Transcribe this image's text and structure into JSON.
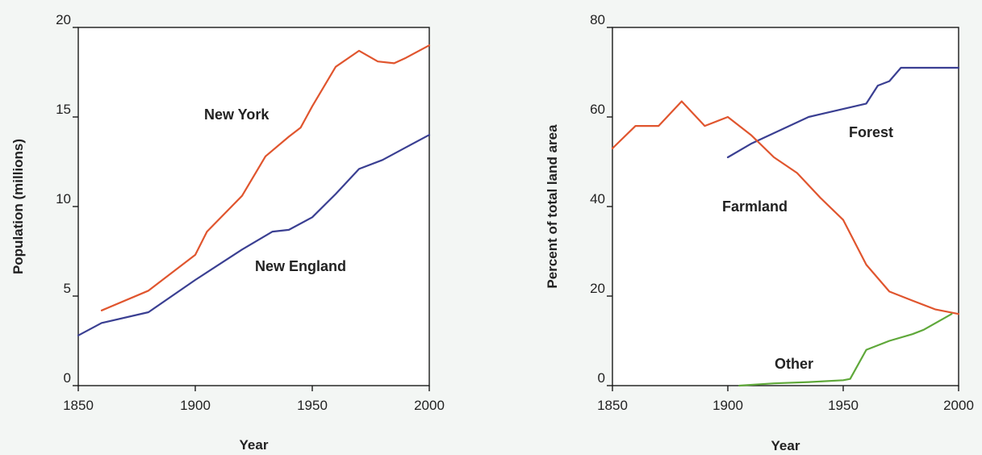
{
  "chart_data": [
    {
      "type": "line",
      "title": "",
      "xlabel": "Year",
      "ylabel": "Population (millions)",
      "xlim": [
        1850,
        2000
      ],
      "ylim": [
        0,
        20
      ],
      "xticks": [
        "1850",
        "1900",
        "1950",
        "2000"
      ],
      "yticks": [
        "0",
        "5",
        "10",
        "15",
        "20"
      ],
      "grid": false,
      "series": [
        {
          "name": "New York",
          "color": "#e0552e",
          "x": [
            1860,
            1880,
            1900,
            1905,
            1920,
            1930,
            1940,
            1945,
            1950,
            1960,
            1970,
            1978,
            1985,
            1990,
            2000
          ],
          "y": [
            4.2,
            5.3,
            7.3,
            8.6,
            10.6,
            12.8,
            13.9,
            14.4,
            15.6,
            17.8,
            18.7,
            18.1,
            18.0,
            18.3,
            19.0
          ]
        },
        {
          "name": "New England",
          "color": "#3a3f92",
          "x": [
            1850,
            1860,
            1880,
            1900,
            1920,
            1933,
            1940,
            1950,
            1960,
            1970,
            1980,
            1990,
            2000
          ],
          "y": [
            2.8,
            3.5,
            4.1,
            5.9,
            7.6,
            8.6,
            8.7,
            9.4,
            10.7,
            12.1,
            12.6,
            13.3,
            14.0
          ]
        }
      ]
    },
    {
      "type": "line",
      "title": "",
      "xlabel": "Year",
      "ylabel": "Percent of total land area",
      "xlim": [
        1850,
        2000
      ],
      "ylim": [
        0,
        80
      ],
      "xticks": [
        "1850",
        "1900",
        "1950",
        "2000"
      ],
      "yticks": [
        "0",
        "20",
        "40",
        "60",
        "80"
      ],
      "grid": false,
      "series": [
        {
          "name": "Forest",
          "color": "#3a3f92",
          "x": [
            1900,
            1910,
            1935,
            1960,
            1965,
            1970,
            1975,
            2000
          ],
          "y": [
            51,
            54,
            60,
            63,
            67,
            68,
            71,
            71
          ]
        },
        {
          "name": "Farmland",
          "color": "#e0552e",
          "x": [
            1850,
            1860,
            1870,
            1880,
            1890,
            1900,
            1910,
            1920,
            1930,
            1940,
            1950,
            1960,
            1970,
            1980,
            1990,
            2000
          ],
          "y": [
            53,
            58,
            58,
            63.5,
            58,
            60,
            56,
            51,
            47.5,
            42,
            37,
            27,
            21,
            19,
            17,
            16
          ]
        },
        {
          "name": "Other",
          "color": "#5fa83a",
          "x": [
            1905,
            1920,
            1935,
            1950,
            1953,
            1960,
            1970,
            1980,
            1985,
            1997
          ],
          "y": [
            0,
            0.5,
            0.8,
            1.2,
            1.5,
            8,
            10,
            11.5,
            12.5,
            16
          ]
        }
      ]
    }
  ]
}
